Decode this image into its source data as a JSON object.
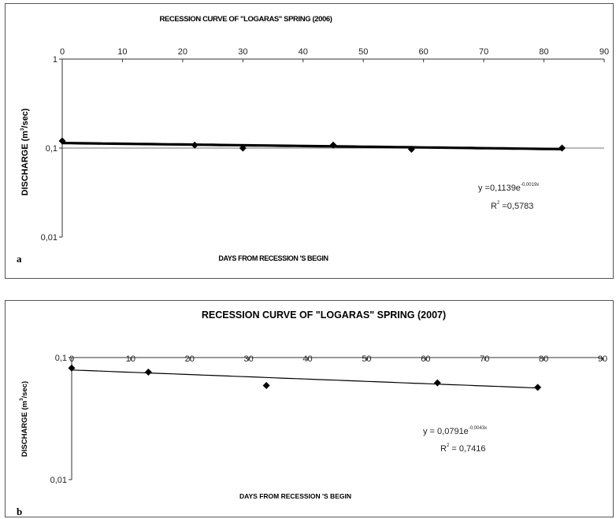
{
  "chart_data": [
    {
      "type": "scatter",
      "panel_label": "a",
      "title": "RECESSION CURVE OF \"LOGARAS\" SPRING (2006)",
      "xlabel": "DAYS FROM RECESSION 'S BEGIN",
      "ylabel_main": "DISCHARGE (m",
      "ylabel_sup": "3",
      "ylabel_end": "/sec)",
      "x_ticks": [
        "0",
        "10",
        "20",
        "30",
        "40",
        "50",
        "60",
        "70",
        "80",
        "90"
      ],
      "y_ticks": [
        {
          "value": 1,
          "label": "1"
        },
        {
          "value": 0.1,
          "label": "0,1"
        },
        {
          "value": 0.01,
          "label": "0,01"
        }
      ],
      "xlim": [
        0,
        90
      ],
      "ylim": [
        0.01,
        1
      ],
      "y_scale": "log",
      "series": [
        {
          "x": [
            0,
            22,
            30,
            45,
            58,
            83
          ],
          "y": [
            0.12,
            0.108,
            0.1,
            0.108,
            0.097,
            0.1
          ]
        }
      ],
      "trendline": {
        "a": 0.1139,
        "b": -0.0019,
        "x_range": [
          0,
          83
        ]
      },
      "equation": {
        "prefix": "y =0,1139e",
        "exponent": "-0,0019x"
      },
      "r2": {
        "base": "R",
        "sup": "2",
        "value": " =0,5783"
      }
    },
    {
      "type": "scatter",
      "panel_label": "b",
      "title": "RECESSION CURVE OF \"LOGARAS\" SPRING (2007)",
      "xlabel": "DAYS FROM RECESSION 'S BEGIN",
      "ylabel_main": "DISCHARGE (m",
      "ylabel_sup": "3",
      "ylabel_end": "/sec)",
      "x_ticks": [
        "0",
        "10",
        "20",
        "30",
        "40",
        "50",
        "60",
        "70",
        "80",
        "90"
      ],
      "y_ticks": [
        {
          "value": 0.1,
          "label": "0,1"
        },
        {
          "value": 0.01,
          "label": "0,01"
        }
      ],
      "xlim": [
        0,
        90
      ],
      "ylim": [
        0.01,
        0.1
      ],
      "y_scale": "log",
      "series": [
        {
          "x": [
            0,
            13,
            33,
            62,
            79
          ],
          "y": [
            0.082,
            0.076,
            0.059,
            0.062,
            0.057
          ]
        }
      ],
      "trendline": {
        "a": 0.0791,
        "b": -0.0043,
        "x_range": [
          0,
          79
        ]
      },
      "equation": {
        "prefix": "y = 0,0791e",
        "exponent": "-0,0043x"
      },
      "r2": {
        "base": "R",
        "sup": "2",
        "value": " = 0,7416"
      }
    }
  ]
}
